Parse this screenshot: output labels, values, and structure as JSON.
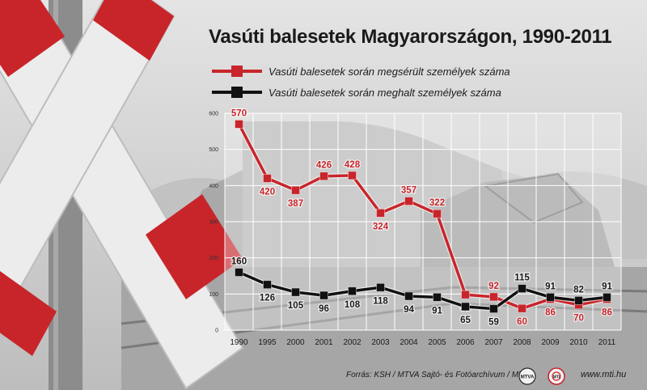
{
  "title": "Vasúti balesetek Magyarországon, 1990-2011",
  "source": "Forrás: KSH / MTVA Sajtó- és Fotóarchívum / MTI",
  "website": "www.mti.hu",
  "logos": {
    "mtva": "MTVA",
    "mti": "MTI"
  },
  "chart_data": {
    "type": "line",
    "title": "Vasúti balesetek Magyarországon, 1990-2011",
    "x": [
      "1990",
      "1995",
      "2000",
      "2001",
      "2002",
      "2003",
      "2004",
      "2005",
      "2006",
      "2007",
      "2008",
      "2009",
      "2010",
      "2011"
    ],
    "ylim": [
      0,
      600
    ],
    "yticks": [
      0,
      100,
      200,
      300,
      400,
      500,
      600
    ],
    "grid": true,
    "legend_position": "top",
    "series": [
      {
        "name": "Vasúti balesetek során megsérült személyek száma",
        "color": "#c8252b",
        "values": [
          570,
          420,
          387,
          426,
          428,
          324,
          357,
          322,
          98,
          92,
          60,
          86,
          70,
          86
        ]
      },
      {
        "name": "Vasúti balesetek során meghalt személyek száma",
        "color": "#111111",
        "values": [
          160,
          126,
          105,
          96,
          108,
          118,
          94,
          91,
          65,
          59,
          115,
          91,
          82,
          91
        ]
      }
    ]
  }
}
